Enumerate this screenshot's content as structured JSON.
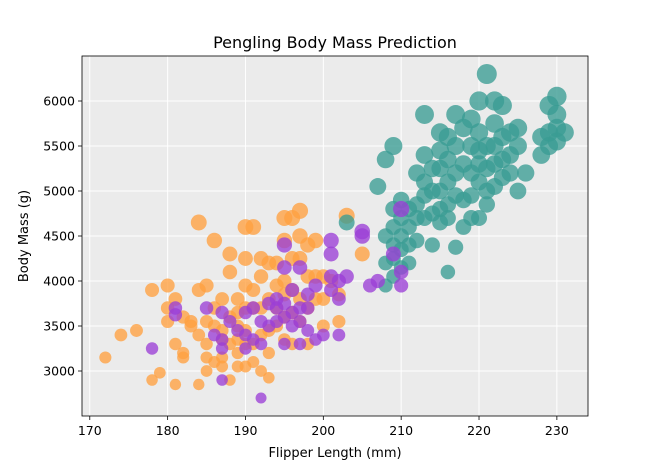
{
  "chart_data": {
    "type": "scatter",
    "title": "Pengling Body Mass Prediction",
    "xlabel": "Flipper Length (mm)",
    "ylabel": "Body Mass (g)",
    "xlim": [
      169,
      234
    ],
    "ylim": [
      2500,
      6500
    ],
    "xticks": [
      170,
      180,
      190,
      200,
      210,
      220,
      230
    ],
    "yticks": [
      3000,
      3500,
      4000,
      4500,
      5000,
      5500,
      6000
    ],
    "xtick_labels": [
      "170",
      "180",
      "190",
      "200",
      "210",
      "220",
      "230"
    ],
    "ytick_labels": [
      "3000",
      "3500",
      "4000",
      "4500",
      "5000",
      "5500",
      "6000"
    ],
    "grid": true,
    "background": "#EBEBEB",
    "series": [
      {
        "color": "#FFA040",
        "points": [
          [
            172,
            3150
          ],
          [
            174,
            3400
          ],
          [
            176,
            3450
          ],
          [
            178,
            3900
          ],
          [
            178,
            2900
          ],
          [
            179,
            2980
          ],
          [
            180,
            3550
          ],
          [
            180,
            3700
          ],
          [
            180,
            3950
          ],
          [
            181,
            3800
          ],
          [
            181,
            3300
          ],
          [
            181,
            2850
          ],
          [
            182,
            3200
          ],
          [
            182,
            3150
          ],
          [
            182,
            3600
          ],
          [
            183,
            3550
          ],
          [
            183,
            3500
          ],
          [
            184,
            3900
          ],
          [
            184,
            3400
          ],
          [
            184,
            4650
          ],
          [
            184,
            2850
          ],
          [
            185,
            3950
          ],
          [
            185,
            3550
          ],
          [
            185,
            3300
          ],
          [
            185,
            3150
          ],
          [
            185,
            3000
          ],
          [
            186,
            4450
          ],
          [
            186,
            3700
          ],
          [
            186,
            3500
          ],
          [
            186,
            3100
          ],
          [
            187,
            3800
          ],
          [
            187,
            3450
          ],
          [
            187,
            3350
          ],
          [
            187,
            3150
          ],
          [
            187,
            3050
          ],
          [
            188,
            4300
          ],
          [
            188,
            4100
          ],
          [
            188,
            3600
          ],
          [
            188,
            3300
          ],
          [
            188,
            2900
          ],
          [
            189,
            3800
          ],
          [
            189,
            3650
          ],
          [
            189,
            3500
          ],
          [
            189,
            3350
          ],
          [
            189,
            3200
          ],
          [
            189,
            3050
          ],
          [
            190,
            4600
          ],
          [
            190,
            4250
          ],
          [
            190,
            3950
          ],
          [
            190,
            3700
          ],
          [
            190,
            3450
          ],
          [
            190,
            3300
          ],
          [
            190,
            3050
          ],
          [
            191,
            4600
          ],
          [
            191,
            3900
          ],
          [
            191,
            3700
          ],
          [
            191,
            3300
          ],
          [
            191,
            3100
          ],
          [
            192,
            4250
          ],
          [
            192,
            4050
          ],
          [
            192,
            3700
          ],
          [
            192,
            3400
          ],
          [
            192,
            3000
          ],
          [
            193,
            4200
          ],
          [
            193,
            3800
          ],
          [
            193,
            3450
          ],
          [
            193,
            3200
          ],
          [
            193,
            2925
          ],
          [
            194,
            4200
          ],
          [
            194,
            3950
          ],
          [
            194,
            3700
          ],
          [
            194,
            3500
          ],
          [
            195,
            4700
          ],
          [
            195,
            4450
          ],
          [
            195,
            4000
          ],
          [
            195,
            3850
          ],
          [
            195,
            3600
          ],
          [
            195,
            3350
          ],
          [
            196,
            4700
          ],
          [
            196,
            4250
          ],
          [
            196,
            3900
          ],
          [
            196,
            3650
          ],
          [
            196,
            3300
          ],
          [
            197,
            4780
          ],
          [
            197,
            4500
          ],
          [
            197,
            4250
          ],
          [
            197,
            3800
          ],
          [
            197,
            3550
          ],
          [
            198,
            4400
          ],
          [
            198,
            4050
          ],
          [
            198,
            3700
          ],
          [
            198,
            3300
          ],
          [
            199,
            4450
          ],
          [
            199,
            4050
          ],
          [
            199,
            3800
          ],
          [
            200,
            4050
          ],
          [
            200,
            3800
          ],
          [
            200,
            3500
          ],
          [
            201,
            4000
          ],
          [
            202,
            3850
          ],
          [
            202,
            3550
          ],
          [
            203,
            4725
          ],
          [
            205,
            4300
          ]
        ]
      },
      {
        "color": "#3A9C94",
        "points": [
          [
            203,
            4650
          ],
          [
            207,
            5050
          ],
          [
            208,
            5350
          ],
          [
            208,
            4500
          ],
          [
            208,
            4200
          ],
          [
            208,
            3950
          ],
          [
            209,
            5500
          ],
          [
            209,
            4800
          ],
          [
            209,
            4600
          ],
          [
            209,
            4400
          ],
          [
            209,
            4250
          ],
          [
            209,
            4050
          ],
          [
            210,
            4900
          ],
          [
            210,
            4700
          ],
          [
            210,
            4500
          ],
          [
            210,
            4350
          ],
          [
            210,
            4150
          ],
          [
            211,
            4800
          ],
          [
            211,
            4600
          ],
          [
            211,
            4400
          ],
          [
            211,
            4200
          ],
          [
            212,
            5200
          ],
          [
            212,
            4850
          ],
          [
            212,
            4700
          ],
          [
            212,
            4450
          ],
          [
            213,
            5850
          ],
          [
            213,
            5400
          ],
          [
            213,
            5100
          ],
          [
            213,
            4950
          ],
          [
            213,
            4700
          ],
          [
            214,
            5250
          ],
          [
            214,
            5000
          ],
          [
            214,
            4750
          ],
          [
            214,
            4400
          ],
          [
            215,
            5650
          ],
          [
            215,
            5450
          ],
          [
            215,
            5250
          ],
          [
            215,
            5000
          ],
          [
            215,
            4800
          ],
          [
            215,
            4650
          ],
          [
            216,
            5600
          ],
          [
            216,
            5350
          ],
          [
            216,
            5100
          ],
          [
            216,
            4850
          ],
          [
            216,
            4700
          ],
          [
            216,
            4100
          ],
          [
            217,
            5850
          ],
          [
            217,
            5500
          ],
          [
            217,
            5200
          ],
          [
            217,
            4950
          ],
          [
            217,
            4375
          ],
          [
            218,
            5700
          ],
          [
            218,
            5300
          ],
          [
            218,
            4900
          ],
          [
            218,
            4600
          ],
          [
            219,
            5800
          ],
          [
            219,
            5500
          ],
          [
            219,
            5200
          ],
          [
            219,
            4950
          ],
          [
            219,
            4700
          ],
          [
            220,
            6000
          ],
          [
            220,
            5650
          ],
          [
            220,
            5450
          ],
          [
            220,
            5300
          ],
          [
            220,
            5100
          ],
          [
            220,
            4700
          ],
          [
            221,
            6300
          ],
          [
            221,
            5500
          ],
          [
            221,
            5250
          ],
          [
            221,
            5000
          ],
          [
            221,
            4850
          ],
          [
            222,
            6000
          ],
          [
            222,
            5750
          ],
          [
            222,
            5500
          ],
          [
            222,
            5300
          ],
          [
            222,
            5050
          ],
          [
            223,
            5950
          ],
          [
            223,
            5600
          ],
          [
            223,
            5350
          ],
          [
            223,
            5150
          ],
          [
            224,
            5650
          ],
          [
            224,
            5400
          ],
          [
            224,
            5200
          ],
          [
            225,
            5700
          ],
          [
            225,
            5500
          ],
          [
            225,
            5000
          ],
          [
            226,
            5200
          ],
          [
            228,
            5600
          ],
          [
            228,
            5400
          ],
          [
            229,
            5950
          ],
          [
            229,
            5650
          ],
          [
            229,
            5500
          ],
          [
            230,
            6050
          ],
          [
            230,
            5850
          ],
          [
            230,
            5700
          ],
          [
            230,
            5550
          ],
          [
            231,
            5650
          ]
        ]
      },
      {
        "color": "#9B3FD6",
        "points": [
          [
            178,
            3250
          ],
          [
            181,
            3700
          ],
          [
            181,
            3625
          ],
          [
            185,
            3700
          ],
          [
            186,
            3400
          ],
          [
            187,
            3650
          ],
          [
            187,
            3350
          ],
          [
            187,
            3250
          ],
          [
            187,
            2900
          ],
          [
            188,
            3550
          ],
          [
            189,
            3450
          ],
          [
            190,
            3650
          ],
          [
            190,
            3400
          ],
          [
            190,
            3250
          ],
          [
            191,
            3700
          ],
          [
            191,
            3350
          ],
          [
            192,
            3550
          ],
          [
            192,
            3300
          ],
          [
            192,
            2700
          ],
          [
            193,
            3750
          ],
          [
            193,
            3500
          ],
          [
            194,
            3800
          ],
          [
            194,
            3700
          ],
          [
            194,
            3550
          ],
          [
            195,
            4400
          ],
          [
            195,
            4150
          ],
          [
            195,
            3750
          ],
          [
            195,
            3600
          ],
          [
            195,
            3300
          ],
          [
            196,
            3900
          ],
          [
            196,
            3650
          ],
          [
            196,
            3500
          ],
          [
            197,
            4150
          ],
          [
            197,
            3700
          ],
          [
            197,
            3550
          ],
          [
            197,
            3300
          ],
          [
            198,
            3850
          ],
          [
            198,
            3700
          ],
          [
            198,
            3450
          ],
          [
            199,
            3950
          ],
          [
            199,
            3350
          ],
          [
            200,
            3400
          ],
          [
            201,
            4450
          ],
          [
            201,
            4300
          ],
          [
            201,
            4050
          ],
          [
            201,
            3900
          ],
          [
            202,
            4000
          ],
          [
            202,
            3800
          ],
          [
            202,
            3400
          ],
          [
            203,
            4050
          ],
          [
            205,
            4550
          ],
          [
            205,
            4500
          ],
          [
            206,
            3950
          ],
          [
            207,
            4000
          ],
          [
            209,
            4300
          ],
          [
            210,
            4800
          ],
          [
            210,
            4100
          ],
          [
            210,
            3950
          ]
        ]
      }
    ]
  }
}
